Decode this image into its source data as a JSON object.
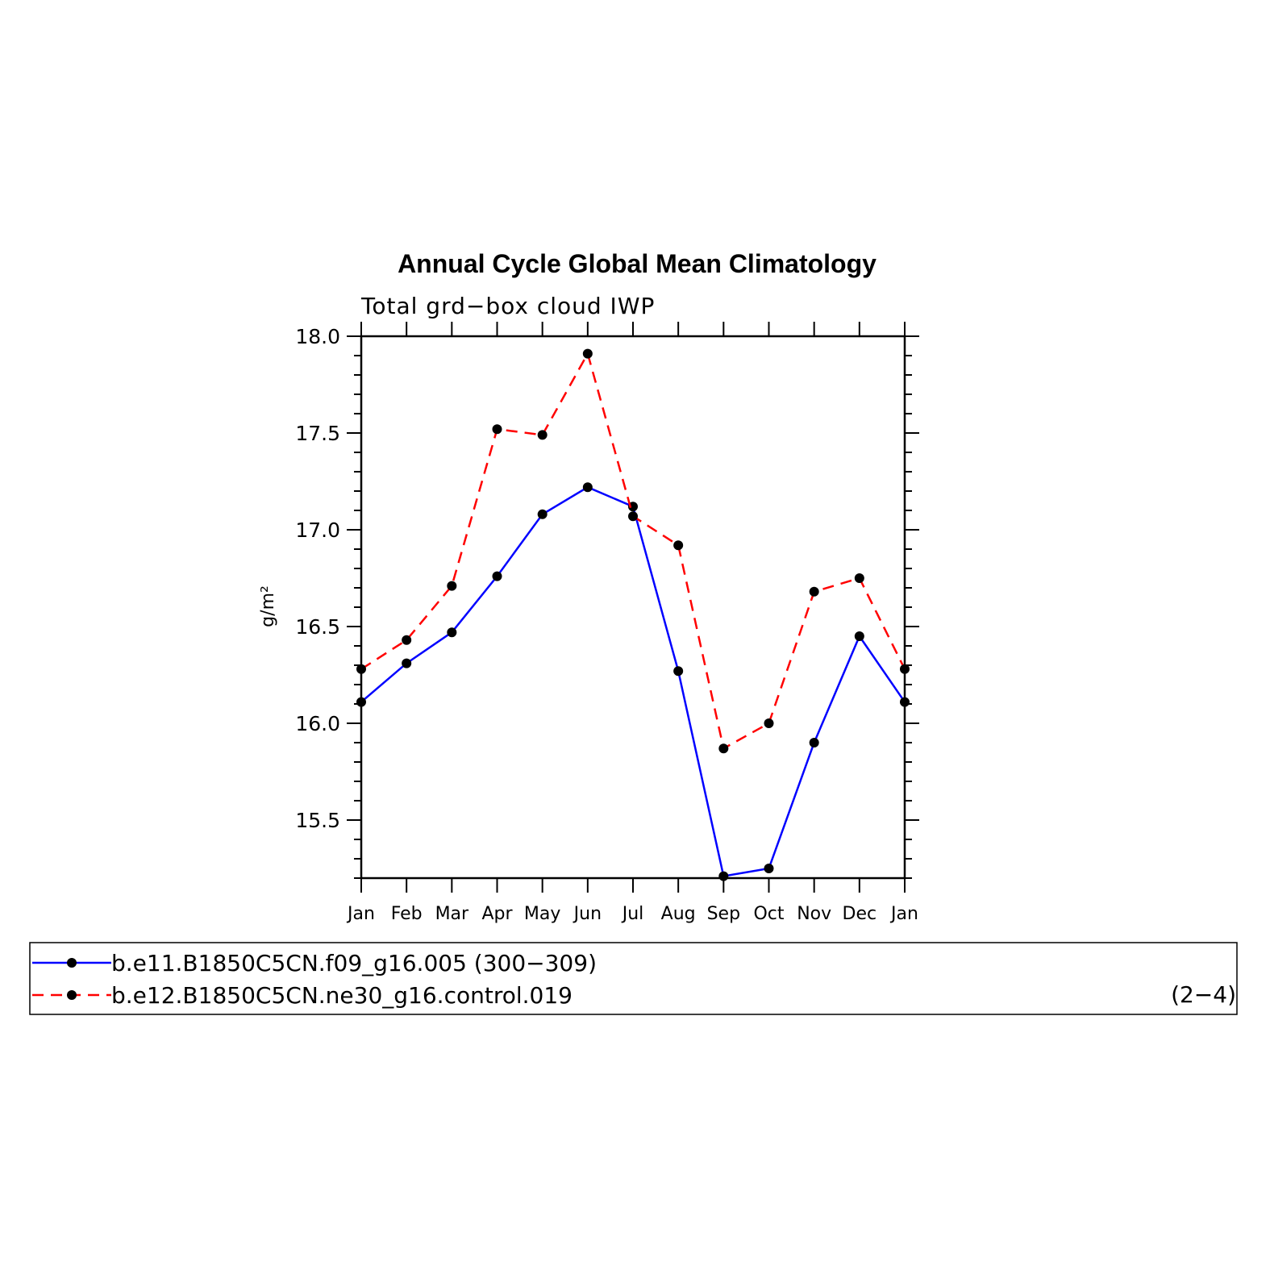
{
  "chart_data": {
    "type": "line",
    "title": "Annual Cycle Global Mean Climatology",
    "subtitle": "Total grd−box cloud IWP",
    "ylabel": "g/m²",
    "xlabel": "",
    "categories": [
      "Jan",
      "Feb",
      "Mar",
      "Apr",
      "May",
      "Jun",
      "Jul",
      "Aug",
      "Sep",
      "Oct",
      "Nov",
      "Dec",
      "Jan"
    ],
    "ylim": [
      15.2,
      18.0
    ],
    "yticks": [
      "15.5",
      "16.0",
      "16.5",
      "17.0",
      "17.5",
      "18.0"
    ],
    "grid": false,
    "legend_position": "bottom",
    "legend_note": "(2−4)",
    "series": [
      {
        "name": "b.e11.B1850C5CN.f09_g16.005 (300−309)",
        "color": "#0000ff",
        "dash": "solid",
        "values": [
          16.11,
          16.31,
          16.47,
          16.76,
          17.08,
          17.22,
          17.12,
          16.27,
          15.21,
          15.25,
          15.9,
          16.45,
          16.11
        ]
      },
      {
        "name": "b.e12.B1850C5CN.ne30_g16.control.019",
        "color": "#ff0000",
        "dash": "dashed",
        "values": [
          16.28,
          16.43,
          16.71,
          17.52,
          17.49,
          17.91,
          17.07,
          16.92,
          15.87,
          16.0,
          16.68,
          16.75,
          16.28
        ]
      }
    ]
  }
}
